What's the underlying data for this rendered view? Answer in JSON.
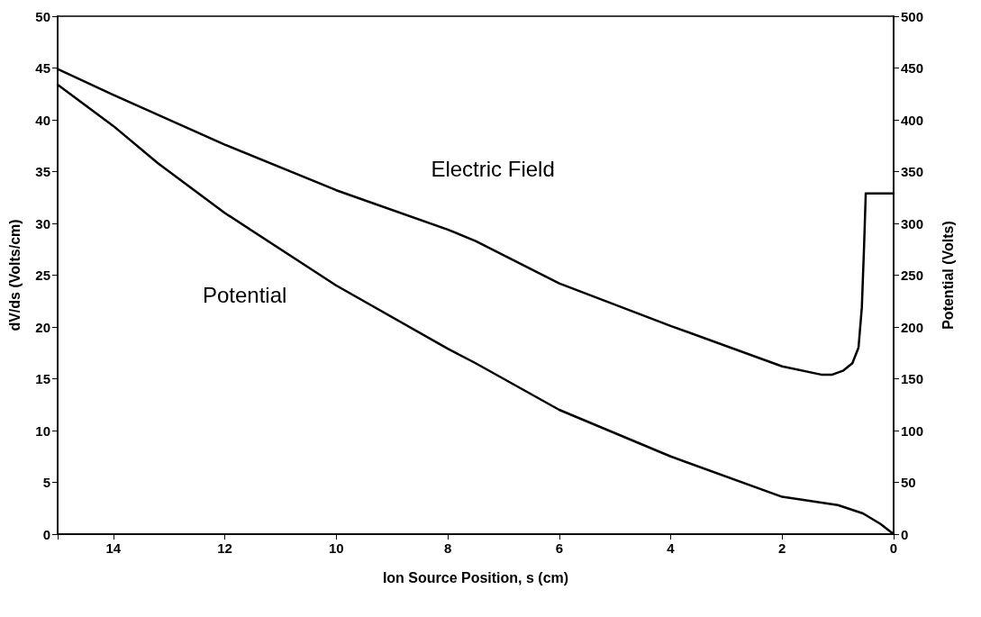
{
  "chart_data": {
    "type": "line",
    "xlabel": "Ion Source Position, s (cm)",
    "ylabel": "dV/ds (Volts/cm)",
    "y2label": "Potential (Volts)",
    "xlim": [
      15,
      0
    ],
    "xticks": [
      {
        "value": 15,
        "label": null
      },
      14,
      12,
      10,
      8,
      6,
      4,
      2,
      0
    ],
    "ylim": [
      0,
      50
    ],
    "yticks": [
      0,
      5,
      10,
      15,
      20,
      25,
      30,
      35,
      40,
      45,
      50
    ],
    "y2lim": [
      0,
      500
    ],
    "y2ticks": [
      0,
      50,
      100,
      150,
      200,
      250,
      300,
      350,
      400,
      450,
      500
    ],
    "grid": false,
    "marker": "none",
    "line_style": "solid",
    "series": [
      {
        "name": "Electric Field",
        "color": "#000000",
        "x": [
          15,
          14,
          12,
          10,
          8,
          7.5,
          6,
          4,
          2,
          1.3,
          1.1,
          0.9,
          0.74,
          0.63,
          0.57,
          0.53,
          0.5,
          0
        ],
        "values": [
          44.9,
          42.4,
          37.6,
          33.2,
          29.4,
          28.3,
          24.2,
          20.1,
          16.2,
          15.4,
          15.4,
          15.8,
          16.5,
          18.0,
          21.9,
          27.8,
          32.9,
          32.9
        ]
      },
      {
        "name": "Potential",
        "color": "#000000",
        "axis": "y2",
        "x": [
          15,
          14,
          13.2,
          12,
          10,
          8,
          7.5,
          6,
          4,
          2,
          1,
          0.55,
          0.24,
          0
        ],
        "values": [
          434,
          394,
          358,
          310,
          240,
          179,
          165,
          120,
          75,
          36,
          28,
          20,
          10,
          0
        ]
      }
    ]
  }
}
